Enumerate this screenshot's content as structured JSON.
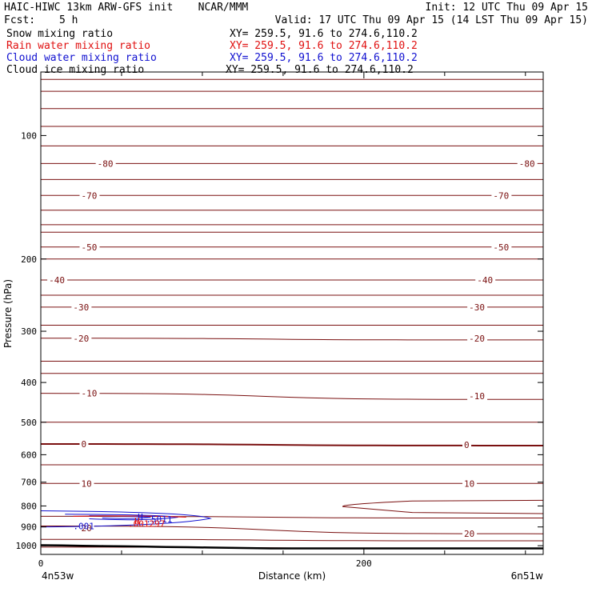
{
  "header": {
    "title": "HAIC-HIWC 13km ARW-GFS init    NCAR/MMM",
    "init": "Init: 12 UTC Thu 09 Apr 15",
    "fcst_label": "Fcst:",
    "fcst_value": "5 h",
    "valid": "Valid: 17 UTC Thu 09 Apr 15 (14 LST Thu 09 Apr 15)",
    "fields": [
      {
        "name": "Snow mixing ratio",
        "xy": "XY= 259.5, 91.6 to 274.6,110.2",
        "color": "#000000"
      },
      {
        "name": "Rain water mixing ratio",
        "xy": "XY= 259.5, 91.6 to 274.6,110.2",
        "color": "#e01010"
      },
      {
        "name": "Cloud water mixing ratio",
        "xy": "XY= 259.5, 91.6 to 274.6,110.2",
        "color": "#1010d0"
      },
      {
        "name": "Cloud ice mixing ratio",
        "xy": "XY= 259.5, 91.6 to 274.6,110.2",
        "color": "#000000"
      }
    ]
  },
  "chart_data": {
    "type": "contour",
    "xlabel": "Distance (km)",
    "ylabel": "Pressure (hPa)",
    "xlim": [
      0,
      311
    ],
    "ylim": [
      1050,
      70
    ],
    "yscale": "log",
    "x_ticks": [
      "0",
      "200"
    ],
    "x_tick_values": [
      0,
      200
    ],
    "x_minor_tick_values": [
      50,
      100,
      150,
      250,
      300
    ],
    "y_ticks": [
      "100",
      "200",
      "300",
      "400",
      "500",
      "600",
      "700",
      "800",
      "900",
      "1000"
    ],
    "y_tick_values": [
      100,
      200,
      300,
      400,
      500,
      600,
      700,
      800,
      900,
      1000
    ],
    "endpoint_labels": {
      "left": "4n53w",
      "right": "6n51w"
    },
    "temperature_contours": {
      "units": "C",
      "color": "#7a1010",
      "labels": [
        "-80",
        "-70",
        "-50",
        "-40",
        "-30",
        "-20",
        "-10",
        "0",
        "10",
        "20"
      ],
      "isotherms": [
        {
          "label": "-80",
          "p_left": 117,
          "p_right": 117,
          "label_at": [
            [
              35,
              117
            ],
            [
              296,
              117
            ]
          ]
        },
        {
          "label": "-70",
          "p_left": 140,
          "p_right": 140,
          "label_at": [
            [
              25,
              140
            ],
            [
              280,
              140
            ]
          ]
        },
        {
          "label": "-50",
          "p_left": 187,
          "p_right": 187,
          "label_at": [
            [
              25,
              187
            ],
            [
              280,
              187
            ]
          ]
        },
        {
          "label": "-40",
          "p_left": 225,
          "p_right": 225,
          "label_at": [
            [
              5,
              225
            ],
            [
              270,
              225
            ]
          ]
        },
        {
          "label": "-30",
          "p_left": 262,
          "p_right": 262,
          "label_at": [
            [
              20,
              262
            ],
            [
              265,
              262
            ]
          ]
        },
        {
          "label": "-20",
          "p_left": 312,
          "p_right": 315,
          "label_at": [
            [
              20,
              312
            ],
            [
              265,
              312
            ]
          ]
        },
        {
          "label": "-10",
          "p_left": 425,
          "p_right": 440,
          "label_at": [
            [
              25,
              425
            ],
            [
              265,
              432
            ]
          ]
        },
        {
          "label": "0",
          "p_left": 565,
          "p_right": 570,
          "label_at": [
            [
              25,
              565
            ],
            [
              262,
              567
            ]
          ]
        },
        {
          "label": "10",
          "p_left": 705,
          "p_right": 705,
          "label_at": [
            [
              25,
              705
            ],
            [
              262,
              705
            ]
          ]
        },
        {
          "label": "20",
          "p_left": 895,
          "p_right": 935,
          "label_at": [
            [
              25,
              905
            ],
            [
              262,
              935
            ]
          ]
        }
      ],
      "unlabeled_levels_hpa": [
        73,
        78,
        86,
        95,
        106,
        128,
        152,
        165,
        172,
        200,
        245,
        290,
        355,
        380,
        500,
        635,
        848,
        965,
        1008
      ]
    },
    "annotations": [
      {
        "text": "H",
        "x": 60,
        "p": 850,
        "color": "#1010d0"
      },
      {
        "text": ".5011",
        "x": 65,
        "p": 862,
        "color": "#1010d0"
      },
      {
        "text": ".001",
        "x": 20,
        "p": 895,
        "color": "#1010d0"
      },
      {
        "text": "H",
        "x": 58,
        "p": 870,
        "color": "#e01010"
      },
      {
        "text": ".001297",
        "x": 54,
        "p": 883,
        "color": "#e01010"
      }
    ],
    "terrain": {
      "p_left": 997,
      "p_right": 1015,
      "color": "#000000"
    }
  }
}
